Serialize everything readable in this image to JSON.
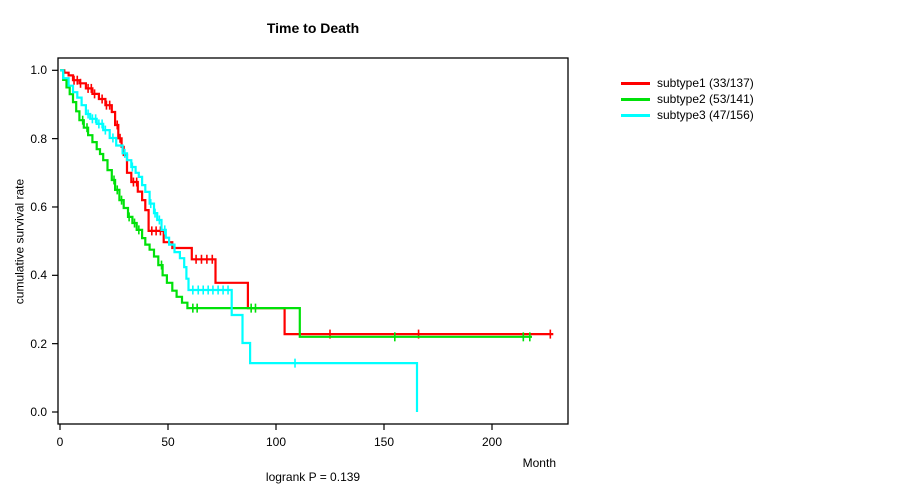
{
  "chart_data": {
    "type": "line",
    "variant": "kaplan-meier-step-plot",
    "title": "Time to Death",
    "xlabel": "Month",
    "ylabel": "cumulative survival rate",
    "subtitle": "logrank P = 0.139",
    "grid": false,
    "legend_position": "right-outside",
    "xlim": [
      0,
      235
    ],
    "ylim": [
      0.0,
      1.0
    ],
    "x_tick_values": [
      0,
      50,
      100,
      150,
      200
    ],
    "x_tick_labels": [
      "0",
      "50",
      "100",
      "150",
      "200"
    ],
    "y_tick_values": [
      0.0,
      0.2,
      0.4,
      0.6,
      0.8,
      1.0
    ],
    "y_tick_labels": [
      "0.0",
      "0.2",
      "0.4",
      "0.6",
      "0.8",
      "1.0"
    ],
    "series": [
      {
        "name": "subtype1",
        "legend_label": "subtype1 (33/137)",
        "events": 33,
        "n": 137,
        "color": "#ff0000",
        "steps": [
          [
            0,
            1.0
          ],
          [
            2,
            0.993
          ],
          [
            4,
            0.985
          ],
          [
            6,
            0.971
          ],
          [
            9,
            0.962
          ],
          [
            12,
            0.947
          ],
          [
            15,
            0.931
          ],
          [
            18,
            0.916
          ],
          [
            21,
            0.898
          ],
          [
            24,
            0.878
          ],
          [
            25.5,
            0.84
          ],
          [
            27,
            0.801
          ],
          [
            28.5,
            0.776
          ],
          [
            29.5,
            0.752
          ],
          [
            31,
            0.7
          ],
          [
            33,
            0.673
          ],
          [
            36,
            0.645
          ],
          [
            38,
            0.62
          ],
          [
            39.5,
            0.591
          ],
          [
            41,
            0.53
          ],
          [
            48,
            0.497
          ],
          [
            52,
            0.48
          ],
          [
            61,
            0.447
          ],
          [
            72,
            0.378
          ],
          [
            87,
            0.304
          ],
          [
            104,
            0.228
          ]
        ],
        "end_time": 228.4,
        "censor_times": [
          6.5,
          8,
          9.5,
          13,
          14.5,
          16,
          19.5,
          21.5,
          23,
          26.5,
          27.8,
          34,
          35.5,
          42.5,
          44.5,
          46.5,
          63,
          65.5,
          68,
          70.5,
          125,
          166,
          227
        ]
      },
      {
        "name": "subtype2",
        "legend_label": "subtype2 (53/141)",
        "events": 53,
        "n": 141,
        "color": "#00e109",
        "steps": [
          [
            0,
            1.0
          ],
          [
            1.5,
            0.972
          ],
          [
            3,
            0.95
          ],
          [
            4.5,
            0.93
          ],
          [
            6,
            0.907
          ],
          [
            7.5,
            0.88
          ],
          [
            9,
            0.854
          ],
          [
            11,
            0.832
          ],
          [
            13,
            0.81
          ],
          [
            15,
            0.79
          ],
          [
            17,
            0.769
          ],
          [
            18.5,
            0.755
          ],
          [
            20,
            0.737
          ],
          [
            22,
            0.708
          ],
          [
            24,
            0.679
          ],
          [
            25.5,
            0.65
          ],
          [
            27.5,
            0.62
          ],
          [
            29.5,
            0.597
          ],
          [
            31.5,
            0.571
          ],
          [
            33.5,
            0.553
          ],
          [
            35.5,
            0.533
          ],
          [
            38,
            0.509
          ],
          [
            39.5,
            0.49
          ],
          [
            41.5,
            0.475
          ],
          [
            43.5,
            0.455
          ],
          [
            45.5,
            0.43
          ],
          [
            47.5,
            0.4
          ],
          [
            49.5,
            0.378
          ],
          [
            52,
            0.355
          ],
          [
            54,
            0.337
          ],
          [
            56.5,
            0.32
          ],
          [
            59,
            0.304
          ],
          [
            111,
            0.22
          ]
        ],
        "end_time": 218.5,
        "censor_times": [
          10.5,
          12.5,
          25,
          26.5,
          28.5,
          32,
          34.5,
          36.5,
          47,
          61.5,
          63.5,
          88.5,
          90.5,
          155,
          214.5,
          217.5
        ]
      },
      {
        "name": "subtype3",
        "legend_label": "subtype3 (47/156)",
        "events": 47,
        "n": 156,
        "color": "#00ffff",
        "steps": [
          [
            0,
            1.0
          ],
          [
            1.5,
            0.977
          ],
          [
            4,
            0.955
          ],
          [
            6,
            0.936
          ],
          [
            8,
            0.92
          ],
          [
            10,
            0.898
          ],
          [
            12,
            0.872
          ],
          [
            14,
            0.858
          ],
          [
            17,
            0.843
          ],
          [
            20,
            0.825
          ],
          [
            23,
            0.802
          ],
          [
            26,
            0.78
          ],
          [
            29,
            0.757
          ],
          [
            31,
            0.737
          ],
          [
            33,
            0.717
          ],
          [
            35,
            0.7
          ],
          [
            36.5,
            0.688
          ],
          [
            38,
            0.664
          ],
          [
            39.5,
            0.644
          ],
          [
            41.5,
            0.61
          ],
          [
            43.5,
            0.582
          ],
          [
            45,
            0.562
          ],
          [
            47,
            0.533
          ],
          [
            49,
            0.51
          ],
          [
            50.5,
            0.49
          ],
          [
            53,
            0.468
          ],
          [
            55.5,
            0.45
          ],
          [
            57.5,
            0.424
          ],
          [
            58.5,
            0.39
          ],
          [
            59.5,
            0.357
          ],
          [
            79.5,
            0.284
          ],
          [
            84.5,
            0.202
          ],
          [
            88,
            0.143
          ],
          [
            165.3,
            0.0
          ]
        ],
        "end_time": 165.3,
        "censor_times": [
          13,
          15,
          16.5,
          18,
          19.5,
          21,
          24.5,
          30,
          33.5,
          42,
          44,
          46,
          48.5,
          61.5,
          64,
          66.3,
          68.6,
          70.8,
          73.2,
          75.5,
          77.8,
          108.8
        ]
      }
    ]
  }
}
